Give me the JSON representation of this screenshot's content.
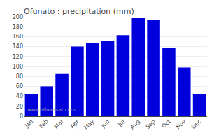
{
  "chart_data": {
    "type": "bar",
    "title": "Ofunato : precipitation (mm)",
    "categories": [
      "Jan",
      "Feb",
      "Mar",
      "Apr",
      "May",
      "Jun",
      "Jul",
      "Aug",
      "Sep",
      "Oct",
      "Nov",
      "Dec"
    ],
    "values": [
      45,
      60,
      85,
      140,
      148,
      152,
      163,
      198,
      193,
      138,
      98,
      45
    ],
    "color": "#0000dd",
    "ylim": [
      0,
      200
    ],
    "yticks": [
      0,
      20,
      40,
      60,
      80,
      100,
      120,
      140,
      160,
      180,
      200
    ],
    "grid": true,
    "annotations": [
      "www.allmetsat.com"
    ]
  }
}
